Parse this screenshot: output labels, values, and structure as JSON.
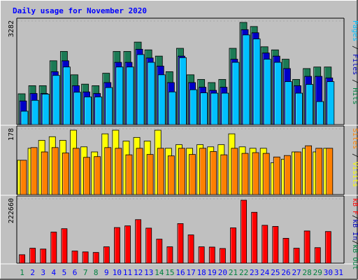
{
  "chart_data": {
    "type": "bar",
    "title": "Daily usage for November 2020",
    "categories": [
      "1",
      "2",
      "3",
      "4",
      "5",
      "6",
      "7",
      "8",
      "9",
      "10",
      "11",
      "12",
      "13",
      "14",
      "15",
      "16",
      "17",
      "18",
      "19",
      "20",
      "21",
      "22",
      "23",
      "24",
      "25",
      "26",
      "27",
      "28",
      "29",
      "30",
      "31"
    ],
    "weekend_days": [
      1,
      7,
      8,
      14,
      15,
      21,
      22,
      28,
      29
    ],
    "panels": [
      {
        "id": "hits-files-pages",
        "max_label": "3282",
        "max": 3282,
        "side_labels": [
          {
            "text": "Pages",
            "color": "#00c0ff"
          },
          {
            "text": " / ",
            "color": "#000000"
          },
          {
            "text": "Files",
            "color": "#0000c0"
          },
          {
            "text": " / ",
            "color": "#000000"
          },
          {
            "text": "Hits",
            "color": "#008040"
          }
        ],
        "series": [
          {
            "name": "Hits",
            "color": "#1c7a55",
            "values": [
              990,
              1250,
              1250,
              2050,
              2350,
              1600,
              1300,
              1250,
              1650,
              2350,
              2350,
              2650,
              2400,
              2200,
              1700,
              2450,
              1600,
              1450,
              1350,
              1450,
              2450,
              3282,
              3150,
              2500,
              2400,
              2100,
              1450,
              1800,
              1850,
              1850,
              0
            ]
          },
          {
            "name": "Files",
            "color": "#0000c8",
            "values": [
              760,
              1000,
              1000,
              1700,
              2050,
              1250,
              1050,
              1000,
              1350,
              2000,
              2000,
              2420,
              2140,
              1880,
              1350,
              2200,
              1350,
              1200,
              1100,
              1200,
              2100,
              3050,
              2950,
              2300,
              2200,
              1800,
              1250,
              1550,
              1550,
              1500,
              0
            ]
          },
          {
            "name": "Pages",
            "color": "#00c0ff",
            "values": [
              430,
              780,
              980,
              1580,
              1850,
              1040,
              890,
              890,
              1190,
              1850,
              1850,
              2250,
              2000,
              1600,
              1050,
              2150,
              1120,
              1020,
              1010,
              1010,
              2000,
              2880,
              2750,
              2100,
              2000,
              1380,
              1010,
              1290,
              740,
              1380,
              0
            ]
          }
        ]
      },
      {
        "id": "visits-sites",
        "max_label": "178",
        "max": 178,
        "side_labels": [
          {
            "text": "Sites",
            "color": "#ff8000"
          },
          {
            "text": " / ",
            "color": "#000000"
          },
          {
            "text": "Visits",
            "color": "#ffff00"
          }
        ],
        "series": [
          {
            "name": "Visits",
            "color": "#ffff00",
            "values": [
              95,
              128,
              150,
              160,
              150,
              178,
              132,
              118,
              168,
              178,
              148,
              158,
              148,
              178,
              128,
              138,
              128,
              138,
              132,
              138,
              168,
              132,
              128,
              128,
              88,
              98,
              118,
              128,
              118,
              128,
              0
            ]
          },
          {
            "name": "Sites",
            "color": "#ff8000",
            "values": [
              95,
              130,
              118,
              130,
              115,
              128,
              103,
              105,
              130,
              128,
              110,
              128,
              111,
              128,
              107,
              128,
              111,
              128,
              119,
              110,
              128,
              114,
              116,
              114,
              104,
              108,
              118,
              135,
              128,
              128,
              0
            ]
          }
        ]
      },
      {
        "id": "kbytes",
        "max_label": "222660",
        "max": 222660,
        "side_labels": [
          {
            "text": "kB F",
            "color": "#ff0000"
          },
          {
            "text": "/",
            "color": "#000000"
          },
          {
            "text": "kB In",
            "color": "#0000c0"
          },
          {
            "text": "/",
            "color": "#000000"
          },
          {
            "text": "kB Out",
            "color": "#008040"
          }
        ],
        "series": [
          {
            "name": "kB F",
            "color": "#ff0000",
            "values": [
              30000,
              53000,
              50000,
              110000,
              122000,
              43000,
              40000,
              38000,
              58000,
              126000,
              132000,
              154000,
              124000,
              85000,
              58000,
              140000,
              100000,
              58000,
              57000,
              52000,
              125000,
              222660,
              180000,
              134000,
              130000,
              88000,
              53000,
              114000,
              55000,
              112000,
              0
            ]
          }
        ]
      }
    ],
    "colors": {
      "background": "#c0c0c0",
      "title": "#0000ff",
      "weekday_label": "#0000ff",
      "weekend_label": "#008040"
    }
  }
}
